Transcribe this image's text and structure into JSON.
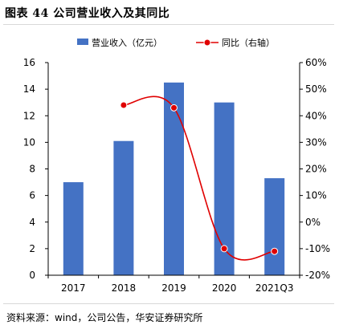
{
  "header": {
    "title": "图表 44 公司营业收入及其同比"
  },
  "footer": {
    "source": "资料来源：wind，公司公告，华安证券研究所"
  },
  "colors": {
    "bar": "#4472C4",
    "line": "#E00000",
    "marker_fill": "#E00000",
    "marker_stroke": "#FFFFFF",
    "axis": "#000000"
  },
  "chart_data": {
    "type": "bar",
    "categories": [
      "2017",
      "2018",
      "2019",
      "2020",
      "2021Q3"
    ],
    "series": [
      {
        "name": "营业收入（亿元）",
        "type": "bar",
        "axis": "left",
        "values": [
          7.0,
          10.1,
          14.5,
          13.0,
          7.3
        ]
      },
      {
        "name": "同比（右轴）",
        "type": "line",
        "axis": "right",
        "smooth": true,
        "values": [
          null,
          0.44,
          0.43,
          -0.1,
          -0.11
        ]
      }
    ],
    "ylim": [
      0,
      16
    ],
    "yticks": [
      "0",
      "2",
      "4",
      "6",
      "8",
      "10",
      "12",
      "14",
      "16"
    ],
    "y2lim": [
      -0.2,
      0.6
    ],
    "y2ticks": [
      "-20%",
      "-10%",
      "0%",
      "10%",
      "20%",
      "30%",
      "40%",
      "50%",
      "60%"
    ],
    "legend_position": "top",
    "grid": false
  }
}
